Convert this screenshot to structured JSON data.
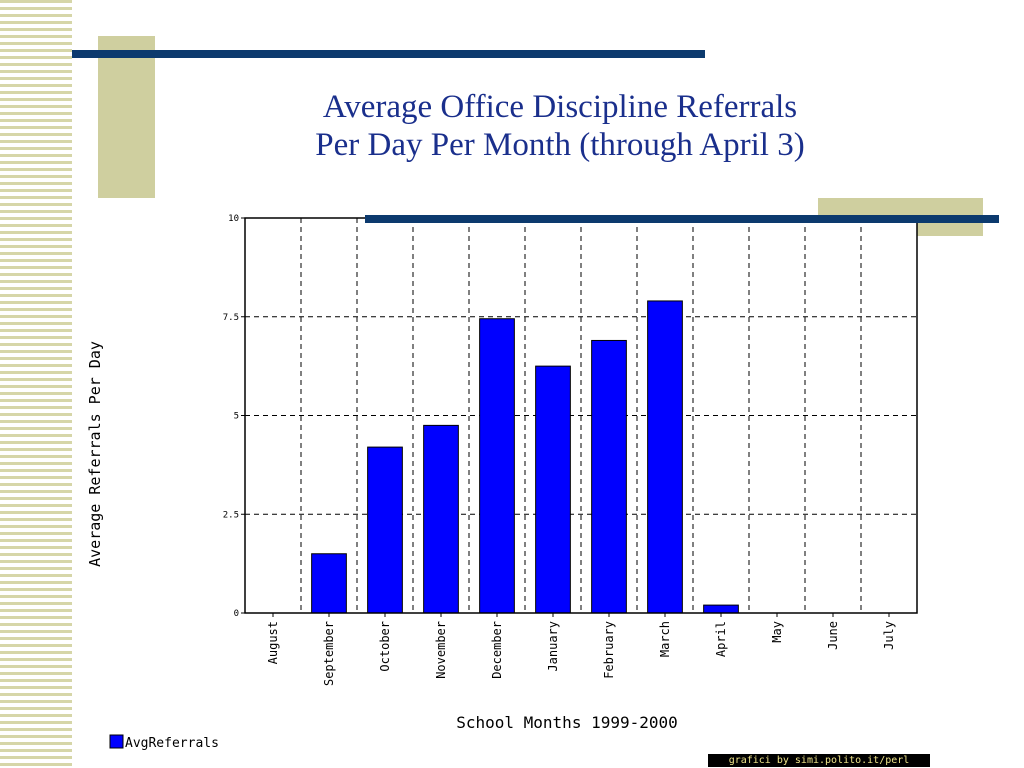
{
  "slide": {
    "title_line1": "Average Office Discipline Referrals",
    "title_line2": "Per Day Per Month (through April 3)",
    "credit": "grafici by simi.polito.it/perl"
  },
  "colors": {
    "title": "#1a2f8c",
    "bar_fill": "#0000ff",
    "accent_bar": "#0c3a6e",
    "accent_block": "#cfcf9f"
  },
  "chart_data": {
    "type": "bar",
    "title": "",
    "xlabel": "School Months 1999-2000",
    "ylabel": "Average Referrals Per Day",
    "ylim": [
      0,
      10
    ],
    "yticks": [
      0,
      2.5,
      5,
      7.5,
      10
    ],
    "ytick_labels": [
      "0",
      "2.5",
      "5",
      "7.5",
      "10"
    ],
    "grid": true,
    "legend_position": "bottom-left",
    "categories": [
      "August",
      "September",
      "October",
      "November",
      "December",
      "January",
      "February",
      "March",
      "April",
      "May",
      "June",
      "July"
    ],
    "series": [
      {
        "name": "AvgReferrals",
        "color": "#0000ff",
        "values": [
          0,
          1.5,
          4.2,
          4.75,
          7.45,
          6.25,
          6.9,
          7.9,
          0.2,
          0,
          0,
          0
        ]
      }
    ]
  }
}
